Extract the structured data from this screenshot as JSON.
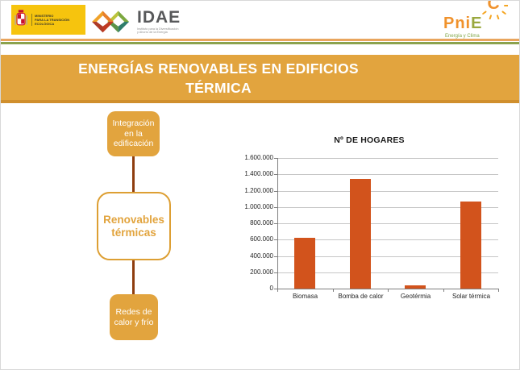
{
  "header": {
    "ministry": {
      "name_line1": "MINISTERIO",
      "name_line2": "PARA LA TRANSICIÓN ECOLÓGICA",
      "bg_color": "#F6C40E"
    },
    "idae": {
      "acronym": "IDAE",
      "tagline_line1": "Instituto para la Diversificación",
      "tagline_line2": "y Ahorro de la Energía"
    },
    "pniec": {
      "orange_letters": "Pni",
      "green_letter": "E",
      "sun_letter": "C",
      "subtitle": "Energía y Clima"
    },
    "divider_orange_color": "#E9A55E",
    "divider_green_color": "#8BA24D"
  },
  "title_banner": {
    "line1": "ENERGÍAS RENOVABLES EN EDIFICIOS",
    "line2": "TÉRMICA",
    "bg_color": "#E2A43E",
    "border_color": "#D08F2D"
  },
  "flowchart": {
    "top_box_label": "Integración en la edificación",
    "center_box_label": "Renovables térmicas",
    "bottom_box_label": "Redes de calor y frío",
    "box_color": "#E2A43E",
    "connector_color": "#8E3D0E"
  },
  "chart_data": {
    "type": "bar",
    "title": "Nº DE HOGARES",
    "categories": [
      "Biomasa",
      "Bomba de calor",
      "Geotérmia",
      "Solar térmica"
    ],
    "values": [
      625000,
      1340000,
      40000,
      1070000
    ],
    "bar_color": "#D2531C",
    "xlabel": "",
    "ylabel": "",
    "ylim": [
      0,
      1600000
    ],
    "ytick_step": 200000,
    "ytick_labels": [
      "0",
      "200.000",
      "400.000",
      "600.000",
      "800.000",
      "1.000.000",
      "1.200.000",
      "1.400.000",
      "1.600.000"
    ],
    "grid": true,
    "legend": "none"
  }
}
